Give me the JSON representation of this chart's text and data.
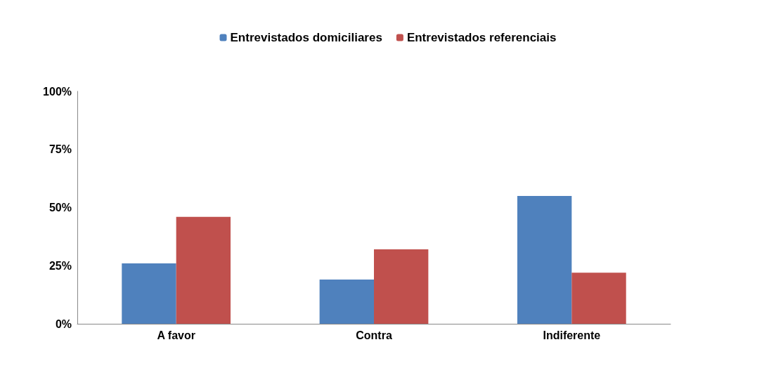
{
  "chart_data": {
    "type": "bar",
    "categories": [
      "A favor",
      "Contra",
      "Indiferente"
    ],
    "series": [
      {
        "name": "Entrevistados domiciliares",
        "color": "#4f81bd",
        "values": [
          26,
          19,
          55
        ]
      },
      {
        "name": "Entrevistados referenciais",
        "color": "#c0504d",
        "values": [
          46,
          32,
          22
        ]
      }
    ],
    "ylim": [
      0,
      100
    ],
    "yticks": [
      {
        "value": 0,
        "label": "0%"
      },
      {
        "value": 25,
        "label": "25%"
      },
      {
        "value": 50,
        "label": "50%"
      },
      {
        "value": 75,
        "label": "75%"
      },
      {
        "value": 100,
        "label": "100%"
      }
    ],
    "grid": false,
    "legend": "top"
  }
}
